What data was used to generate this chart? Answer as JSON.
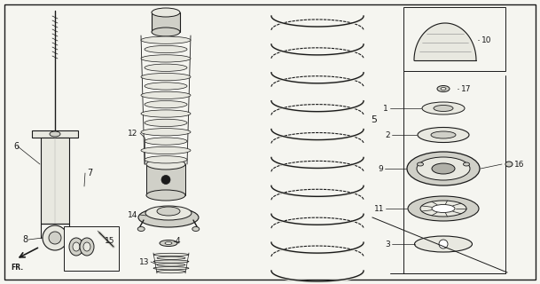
{
  "bg_color": "#f5f5f0",
  "line_color": "#1a1a1a",
  "fill_light": "#e8e8e0",
  "fill_mid": "#d0d0c8",
  "fill_dark": "#b0b0a8"
}
